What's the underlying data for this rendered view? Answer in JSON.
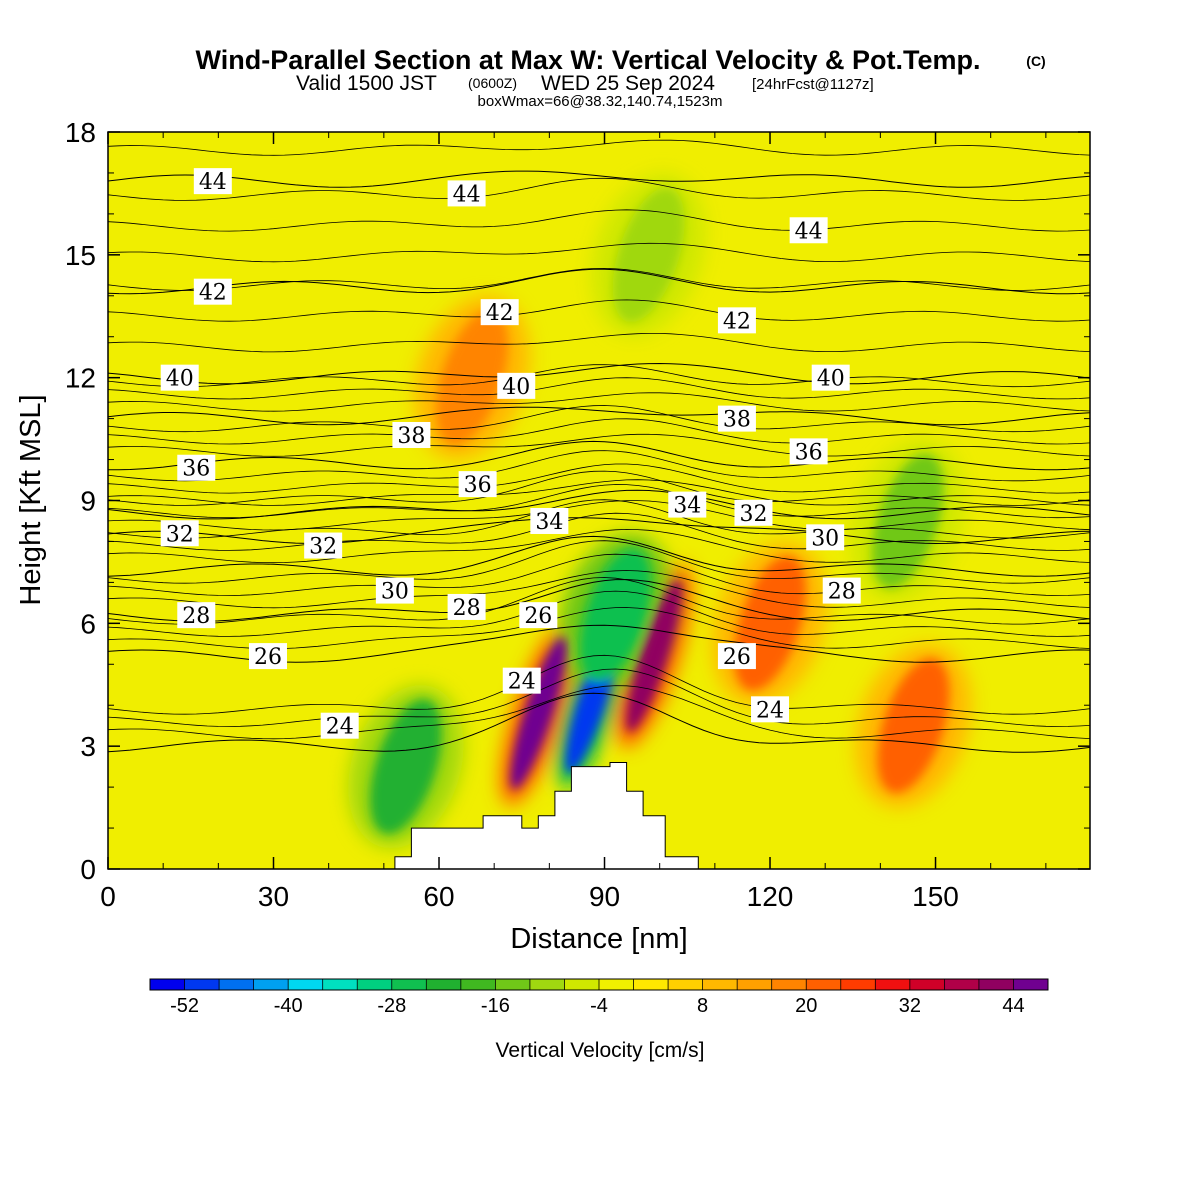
{
  "header": {
    "title": "Wind-Parallel Section at Max W: Vertical Velocity & Pot.Temp.",
    "copyright": "(C)",
    "valid_prefix": "Valid 1500 JST",
    "valid_utc": "(0600Z)",
    "valid_date": "WED 25 Sep 2024",
    "forecast": "[24hrFcst@1127z]",
    "box_info": "boxWmax=66@38.32,140.74,1523m"
  },
  "chart_data": {
    "type": "heatmap",
    "xlabel": "Distance [nm]",
    "ylabel": "Height [Kft MSL]",
    "xlim": [
      0,
      178
    ],
    "ylim": [
      0,
      18
    ],
    "x_ticks": [
      0,
      30,
      60,
      90,
      120,
      150
    ],
    "y_ticks": [
      0,
      3,
      6,
      9,
      12,
      15,
      18
    ],
    "colorbar": {
      "title": "Vertical Velocity [cm/s]",
      "tick_values": [
        -52,
        -40,
        -28,
        -16,
        -4,
        8,
        20,
        32,
        44
      ],
      "colors": [
        "#0000ee",
        "#0038f0",
        "#0070f0",
        "#00a0f0",
        "#00d8f0",
        "#00e0c0",
        "#00d080",
        "#10c050",
        "#20b030",
        "#40b820",
        "#70c818",
        "#a0d810",
        "#d0e800",
        "#f0f000",
        "#ffe800",
        "#ffd000",
        "#ffb800",
        "#ffa000",
        "#ff8400",
        "#ff6000",
        "#ff3c00",
        "#f01010",
        "#d00028",
        "#b00048",
        "#900060",
        "#700090"
      ]
    },
    "velocity_features": [
      {
        "x": 78,
        "y": 3.8,
        "value": 46
      },
      {
        "x": 99,
        "y": 5.2,
        "value": 40
      },
      {
        "x": 88,
        "y": 4.2,
        "value": -52
      },
      {
        "x": 92,
        "y": 6.2,
        "value": -28
      },
      {
        "x": 54,
        "y": 2.5,
        "value": -22
      },
      {
        "x": 120,
        "y": 6.0,
        "value": 20
      },
      {
        "x": 146,
        "y": 3.5,
        "value": 22
      },
      {
        "x": 66,
        "y": 12.0,
        "value": 16
      },
      {
        "x": 145,
        "y": 8.5,
        "value": -14
      },
      {
        "x": 98,
        "y": 15.0,
        "value": -10
      }
    ],
    "terrain": [
      [
        0,
        0
      ],
      [
        52,
        0
      ],
      [
        52,
        0.3
      ],
      [
        55,
        0.3
      ],
      [
        55,
        1.0
      ],
      [
        68,
        1.0
      ],
      [
        68,
        1.3
      ],
      [
        75,
        1.3
      ],
      [
        75,
        1.0
      ],
      [
        78,
        1.0
      ],
      [
        78,
        1.3
      ],
      [
        81,
        1.3
      ],
      [
        81,
        1.9
      ],
      [
        84,
        1.9
      ],
      [
        84,
        2.5
      ],
      [
        91,
        2.5
      ],
      [
        91,
        2.6
      ],
      [
        94,
        2.6
      ],
      [
        94,
        1.9
      ],
      [
        97,
        1.9
      ],
      [
        97,
        1.3
      ],
      [
        101,
        1.3
      ],
      [
        101,
        0.3
      ],
      [
        107,
        0.3
      ],
      [
        107,
        0
      ],
      [
        178,
        0
      ]
    ],
    "theta_contours": [
      {
        "value": 24,
        "y": 3.0,
        "lift": 1.2
      },
      {
        "value": 26,
        "y": 5.2,
        "lift": 0.9
      },
      {
        "value": 28,
        "y": 6.2,
        "lift": 0.8
      },
      {
        "value": 30,
        "y": 7.3,
        "lift": 0.7
      },
      {
        "value": 32,
        "y": 8.1,
        "lift": 0.6
      },
      {
        "value": 34,
        "y": 8.7,
        "lift": 0.5
      },
      {
        "value": 36,
        "y": 9.9,
        "lift": 0.4
      },
      {
        "value": 38,
        "y": 11.0,
        "lift": 0.3
      },
      {
        "value": 40,
        "y": 12.0,
        "lift": 0.3
      },
      {
        "value": 42,
        "y": 14.2,
        "lift": 0.3
      },
      {
        "value": 44,
        "y": 16.8,
        "lift": 0.2
      }
    ],
    "contour_labels": [
      {
        "text": "44",
        "x": 19,
        "y": 16.8
      },
      {
        "text": "44",
        "x": 65,
        "y": 16.5
      },
      {
        "text": "44",
        "x": 127,
        "y": 15.6
      },
      {
        "text": "42",
        "x": 19,
        "y": 14.1
      },
      {
        "text": "42",
        "x": 71,
        "y": 13.6
      },
      {
        "text": "42",
        "x": 114,
        "y": 13.4
      },
      {
        "text": "40",
        "x": 13,
        "y": 12.0
      },
      {
        "text": "40",
        "x": 74,
        "y": 11.8
      },
      {
        "text": "40",
        "x": 131,
        "y": 12.0
      },
      {
        "text": "38",
        "x": 55,
        "y": 10.6
      },
      {
        "text": "38",
        "x": 114,
        "y": 11.0
      },
      {
        "text": "36",
        "x": 16,
        "y": 9.8
      },
      {
        "text": "36",
        "x": 67,
        "y": 9.4
      },
      {
        "text": "36",
        "x": 127,
        "y": 10.2
      },
      {
        "text": "34",
        "x": 80,
        "y": 8.5
      },
      {
        "text": "34",
        "x": 105,
        "y": 8.9
      },
      {
        "text": "32",
        "x": 13,
        "y": 8.2
      },
      {
        "text": "32",
        "x": 39,
        "y": 7.9
      },
      {
        "text": "32",
        "x": 117,
        "y": 8.7
      },
      {
        "text": "30",
        "x": 52,
        "y": 6.8
      },
      {
        "text": "30",
        "x": 130,
        "y": 8.1
      },
      {
        "text": "28",
        "x": 16,
        "y": 6.2
      },
      {
        "text": "28",
        "x": 65,
        "y": 6.4
      },
      {
        "text": "28",
        "x": 133,
        "y": 6.8
      },
      {
        "text": "26",
        "x": 29,
        "y": 5.2
      },
      {
        "text": "26",
        "x": 78,
        "y": 6.2
      },
      {
        "text": "26",
        "x": 114,
        "y": 5.2
      },
      {
        "text": "24",
        "x": 42,
        "y": 3.5
      },
      {
        "text": "24",
        "x": 75,
        "y": 4.6
      },
      {
        "text": "24",
        "x": 120,
        "y": 3.9
      }
    ]
  }
}
